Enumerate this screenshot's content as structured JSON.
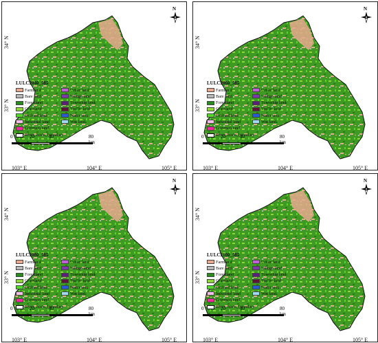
{
  "panels": [
    {
      "title": "LULC2040_585"
    },
    {
      "title": "LULC2060_585"
    },
    {
      "title": "LULC2080_585"
    },
    {
      "title": "LULC2100_585"
    }
  ],
  "axes": {
    "lat_top": "34° N",
    "lat_bottom": "33° N",
    "lon_1": "103° E",
    "lon_2": "104° E",
    "lon_3": "105° E"
  },
  "north_label": "N",
  "legend": {
    "items": [
      {
        "label": "Farmland",
        "color": "#e8a98f"
      },
      {
        "label": "Urban land",
        "color": "#c060d8"
      },
      {
        "label": "Bare land",
        "color": "#b8b8b8"
      },
      {
        "label": "Village land",
        "color": "#7a3aa8"
      },
      {
        "label": "Forestland",
        "color": "#2a8a1e"
      },
      {
        "label": "Township land",
        "color": "#5a1f7a"
      },
      {
        "label": "Grassland",
        "color": "#8fd63a"
      },
      {
        "label": "Traffic land",
        "color": "#5a1538"
      },
      {
        "label": "Orchard land",
        "color": "#56d62a"
      },
      {
        "label": "Water area",
        "color": "#2a5ad6"
      },
      {
        "label": "Industrial land",
        "color": "#f2c0e6"
      },
      {
        "label": "Wet land",
        "color": "#9fd8ef"
      },
      {
        "label": "Common land",
        "color": "#ee2a9e"
      }
    ],
    "boundary_label": "River_basin_boundary"
  },
  "scale": {
    "l0": "0",
    "l1": "20",
    "l2": "40",
    "l3": "80 km"
  }
}
